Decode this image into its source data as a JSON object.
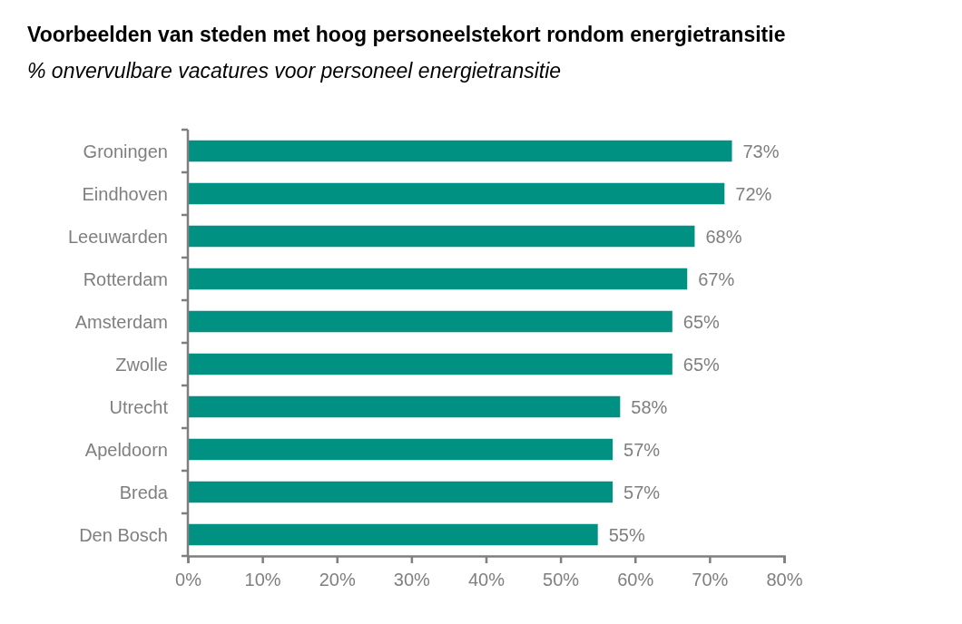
{
  "chart_data": {
    "type": "bar",
    "orientation": "horizontal",
    "title": "Voorbeelden van steden met hoog personeelstekort rondom energietransitie",
    "subtitle": "% onvervulbare vacatures voor personeel energietransitie",
    "categories": [
      "Groningen",
      "Eindhoven",
      "Leeuwarden",
      "Rotterdam",
      "Amsterdam",
      "Zwolle",
      "Utrecht",
      "Apeldoorn",
      "Breda",
      "Den Bosch"
    ],
    "values": [
      73,
      72,
      68,
      67,
      65,
      65,
      58,
      57,
      57,
      55
    ],
    "value_labels": [
      "73%",
      "72%",
      "68%",
      "67%",
      "65%",
      "65%",
      "58%",
      "57%",
      "57%",
      "55%"
    ],
    "color": "#009183",
    "xlim": [
      0,
      80
    ],
    "xticks": [
      {
        "value": 0,
        "label": "0%"
      },
      {
        "value": 10,
        "label": "10%"
      },
      {
        "value": 20,
        "label": "20%"
      },
      {
        "value": 30,
        "label": "30%"
      },
      {
        "value": 40,
        "label": "40%"
      },
      {
        "value": 50,
        "label": "50%"
      },
      {
        "value": 60,
        "label": "60%"
      },
      {
        "value": 70,
        "label": "70%"
      },
      {
        "value": 80,
        "label": "80%"
      }
    ],
    "grid": false
  }
}
